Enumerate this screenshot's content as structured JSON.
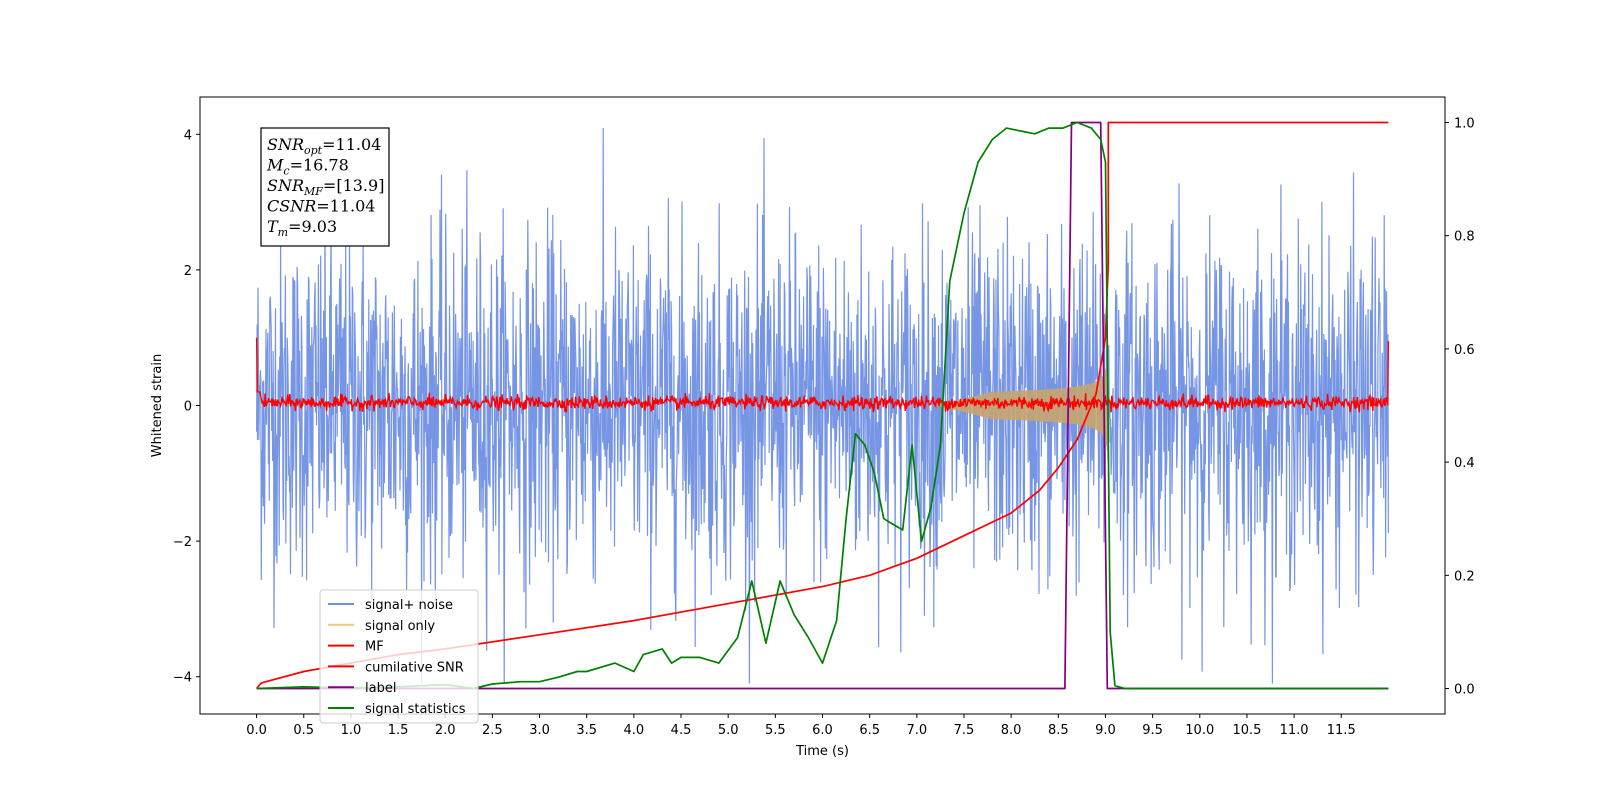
{
  "chart_data": {
    "type": "line",
    "xlabel": "Time (s)",
    "ylabel": "Whitened strain",
    "xlim": [
      -0.6,
      12.6
    ],
    "ylim": [
      -4.55,
      4.55
    ],
    "y2lim": [
      -0.045,
      1.045
    ],
    "x_ticks": [
      0.0,
      0.5,
      1.0,
      1.5,
      2.0,
      2.5,
      3.0,
      3.5,
      4.0,
      4.5,
      5.0,
      5.5,
      6.0,
      6.5,
      7.0,
      7.5,
      8.0,
      8.5,
      9.0,
      9.5,
      10.0,
      10.5,
      11.0,
      11.5
    ],
    "x_tick_labels": [
      "0.0",
      "0.5",
      "1.0",
      "1.5",
      "2.0",
      "2.5",
      "3.0",
      "3.5",
      "4.0",
      "4.5",
      "5.0",
      "5.5",
      "6.0",
      "6.5",
      "7.0",
      "7.5",
      "8.0",
      "8.5",
      "9.0",
      "9.5",
      "10.0",
      "10.5",
      "11.0",
      "11.5"
    ],
    "y_ticks": [
      -4,
      -2,
      0,
      2,
      4
    ],
    "y_tick_labels": [
      "−4",
      "−2",
      "0",
      "2",
      "4"
    ],
    "y2_ticks": [
      0.0,
      0.2,
      0.4,
      0.6,
      0.8,
      1.0
    ],
    "y2_tick_labels": [
      "0.0",
      "0.2",
      "0.4",
      "0.6",
      "0.8",
      "1.0"
    ],
    "legend": {
      "position": "lower-left",
      "entries": [
        {
          "label": "signal+ noise",
          "color": "#6f8fe3"
        },
        {
          "label": "signal only",
          "color": "#f5c97a"
        },
        {
          "label": "MF",
          "color": "#ff0000"
        },
        {
          "label": "cumilative SNR",
          "color": "#ff0000"
        },
        {
          "label": "label",
          "color": "#800080"
        },
        {
          "label": "signal statistics",
          "color": "#008000"
        }
      ]
    },
    "annotation": {
      "lines": [
        {
          "sym": "SNR",
          "sub": "opt",
          "val": "=11.04"
        },
        {
          "sym": "M",
          "sub": "c",
          "val": "=16.78"
        },
        {
          "sym": "SNR",
          "sub": "MF",
          "val": "=[13.9]"
        },
        {
          "sym": "CSNR",
          "sub": "",
          "val": "=11.04"
        },
        {
          "sym": "T",
          "sub": "m",
          "val": "=9.03"
        }
      ]
    },
    "series": [
      {
        "name": "signal+ noise",
        "axis": "left",
        "color": "#6f8fe3",
        "style": "noise band",
        "x_range": [
          0.0,
          12.0
        ],
        "approx_envelope": [
          -4.1,
          4.1
        ]
      },
      {
        "name": "signal only",
        "axis": "left",
        "color": "#c8a46e",
        "style": "chirp",
        "x_range": [
          7.2,
          9.03
        ],
        "approx_peak_amplitude": 0.85
      },
      {
        "name": "MF",
        "axis": "left",
        "color": "#ff0000",
        "style": "noise band",
        "x_range": [
          0.0,
          12.0
        ],
        "approx_envelope": [
          -0.1,
          0.2
        ],
        "edge_values": [
          1.0,
          0.95
        ]
      },
      {
        "name": "cumilative SNR",
        "axis": "right",
        "color": "#ff0000",
        "x": [
          0.0,
          0.05,
          0.5,
          1.0,
          1.5,
          2.0,
          3.0,
          4.0,
          5.0,
          6.0,
          6.5,
          7.0,
          7.5,
          8.0,
          8.3,
          8.5,
          8.7,
          8.9,
          9.0,
          9.03,
          9.03,
          9.1,
          12.0
        ],
        "y": [
          0.0,
          0.01,
          0.03,
          0.045,
          0.06,
          0.07,
          0.095,
          0.12,
          0.15,
          0.18,
          0.2,
          0.23,
          0.27,
          0.31,
          0.35,
          0.39,
          0.44,
          0.52,
          0.62,
          0.75,
          1.0,
          1.0,
          1.0
        ]
      },
      {
        "name": "label",
        "axis": "right",
        "color": "#800080",
        "x": [
          0.0,
          8.57,
          8.64,
          8.95,
          9.02,
          12.0
        ],
        "y": [
          0.0,
          0.0,
          1.0,
          1.0,
          0.0,
          0.0
        ]
      },
      {
        "name": "signal statistics",
        "axis": "right",
        "color": "#008000",
        "x": [
          0.0,
          0.5,
          1.0,
          1.5,
          2.0,
          2.3,
          2.5,
          2.8,
          3.0,
          3.2,
          3.4,
          3.5,
          3.8,
          4.0,
          4.1,
          4.3,
          4.4,
          4.5,
          4.7,
          4.9,
          5.1,
          5.25,
          5.4,
          5.55,
          5.7,
          5.85,
          6.0,
          6.15,
          6.25,
          6.35,
          6.45,
          6.55,
          6.65,
          6.75,
          6.85,
          6.95,
          7.05,
          7.15,
          7.25,
          7.35,
          7.5,
          7.65,
          7.8,
          7.95,
          8.1,
          8.25,
          8.4,
          8.55,
          8.7,
          8.85,
          8.95,
          9.0,
          9.05,
          9.1,
          9.2,
          12.0
        ],
        "y": [
          0.0,
          0.003,
          0.001,
          0.003,
          0.007,
          0.0,
          0.008,
          0.012,
          0.012,
          0.02,
          0.03,
          0.03,
          0.045,
          0.03,
          0.06,
          0.07,
          0.045,
          0.055,
          0.055,
          0.045,
          0.09,
          0.19,
          0.08,
          0.19,
          0.13,
          0.09,
          0.045,
          0.12,
          0.3,
          0.45,
          0.43,
          0.38,
          0.3,
          0.29,
          0.28,
          0.43,
          0.26,
          0.32,
          0.43,
          0.72,
          0.84,
          0.93,
          0.97,
          0.99,
          0.985,
          0.98,
          0.99,
          0.99,
          1.0,
          0.99,
          0.97,
          0.93,
          0.1,
          0.005,
          0.0,
          0.0
        ]
      }
    ]
  }
}
